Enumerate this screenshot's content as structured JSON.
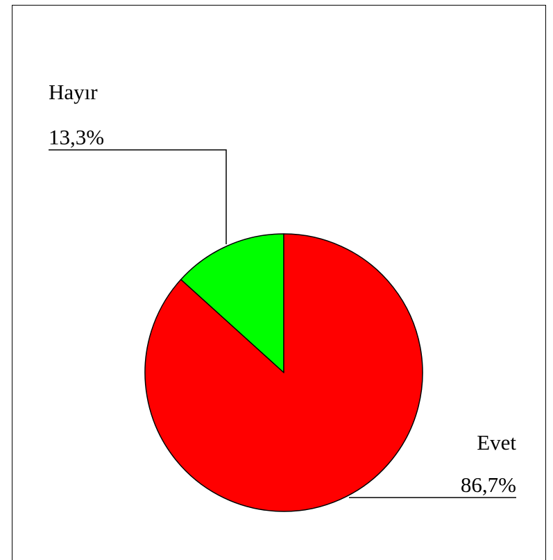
{
  "chart_data": {
    "type": "pie",
    "title": "",
    "slices": [
      {
        "label": "Hayır",
        "value": 13.3,
        "value_label": "13,3%",
        "color": "#00ff00"
      },
      {
        "label": "Evet",
        "value": 86.7,
        "value_label": "86,7%",
        "color": "#ff0000"
      }
    ],
    "start": "12 o'clock",
    "direction": "counter-clockwise",
    "legend": "none",
    "labels": "outside with leader lines"
  }
}
